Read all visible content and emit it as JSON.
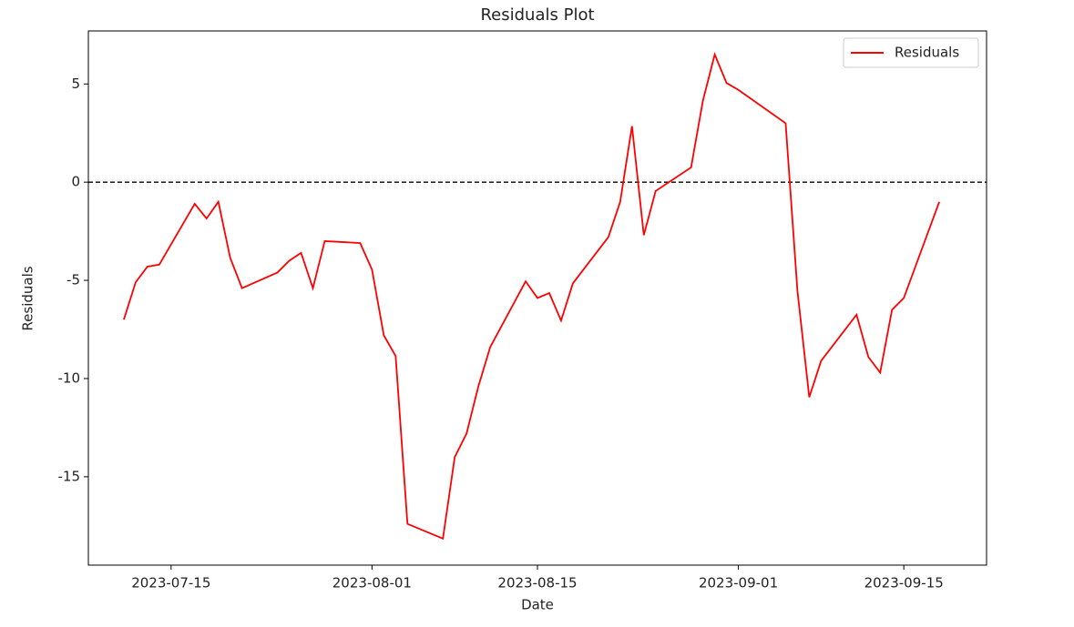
{
  "chart_data": {
    "type": "line",
    "title": "Residuals Plot",
    "xlabel": "Date",
    "ylabel": "Residuals",
    "x": [
      "2023-07-11",
      "2023-07-12",
      "2023-07-13",
      "2023-07-14",
      "2023-07-17",
      "2023-07-18",
      "2023-07-19",
      "2023-07-20",
      "2023-07-21",
      "2023-07-24",
      "2023-07-25",
      "2023-07-26",
      "2023-07-27",
      "2023-07-28",
      "2023-07-31",
      "2023-08-01",
      "2023-08-02",
      "2023-08-03",
      "2023-08-04",
      "2023-08-07",
      "2023-08-08",
      "2023-08-09",
      "2023-08-10",
      "2023-08-11",
      "2023-08-14",
      "2023-08-15",
      "2023-08-16",
      "2023-08-17",
      "2023-08-18",
      "2023-08-21",
      "2023-08-22",
      "2023-08-23",
      "2023-08-24",
      "2023-08-25",
      "2023-08-28",
      "2023-08-29",
      "2023-08-30",
      "2023-08-31",
      "2023-09-01",
      "2023-09-05",
      "2023-09-06",
      "2023-09-07",
      "2023-09-08",
      "2023-09-11",
      "2023-09-12",
      "2023-09-13",
      "2023-09-14",
      "2023-09-15",
      "2023-09-18"
    ],
    "series": [
      {
        "name": "Residuals",
        "color": "#ff0000",
        "values": [
          -7.0,
          -5.1,
          -4.3,
          -4.2,
          -1.1,
          -1.85,
          -1.0,
          -3.85,
          -5.4,
          -4.6,
          -4.0,
          -3.6,
          -5.4,
          -3.0,
          -3.1,
          -4.45,
          -7.8,
          -8.85,
          -17.4,
          -18.15,
          -14.0,
          -12.8,
          -10.4,
          -8.4,
          -5.05,
          -5.9,
          -5.65,
          -7.05,
          -5.15,
          -2.8,
          -1.0,
          2.85,
          -2.7,
          -0.45,
          0.75,
          4.15,
          6.5,
          5.05,
          4.7,
          3.0,
          -5.55,
          -10.95,
          -9.1,
          -6.75,
          -8.9,
          -9.7,
          -6.5,
          -5.9,
          -1.0
        ]
      }
    ],
    "xlim": [
      "2023-07-08",
      "2023-09-22"
    ],
    "xticks": [
      "2023-07-15",
      "2023-08-01",
      "2023-08-15",
      "2023-09-01",
      "2023-09-15"
    ],
    "ylim": [
      -19.5,
      7.7
    ],
    "yticks": [
      -15,
      -10,
      -5,
      0,
      5
    ],
    "hline": 0,
    "legend": "upper right"
  }
}
